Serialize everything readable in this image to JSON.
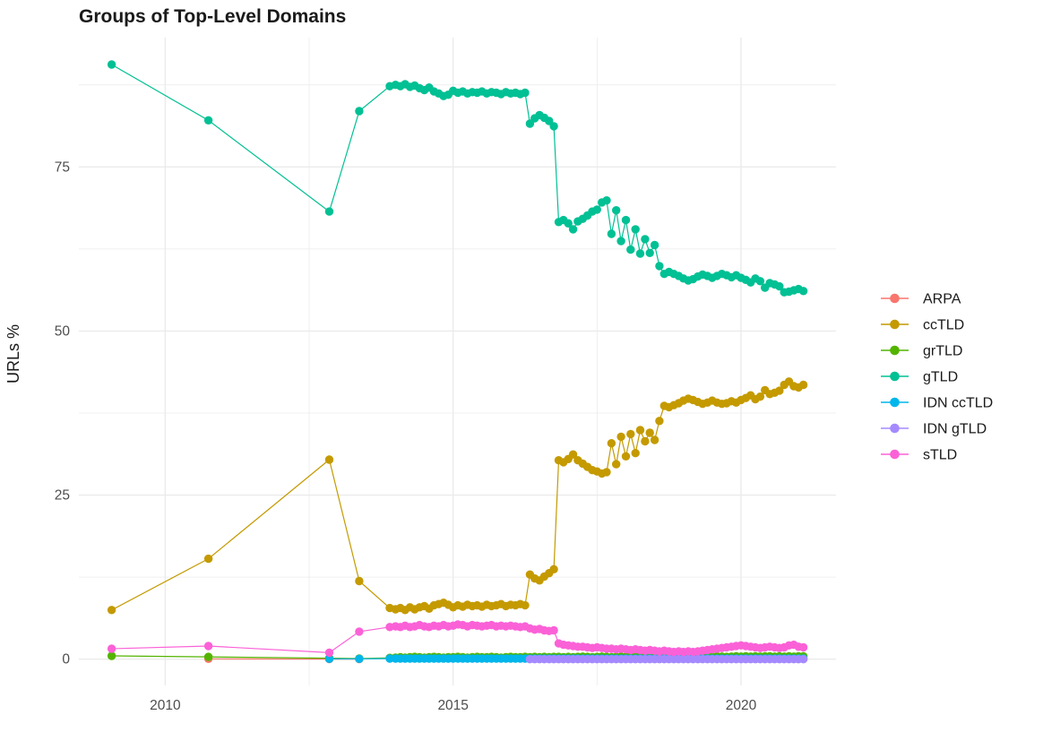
{
  "page": {
    "background": "#ffffff"
  },
  "chart_data": {
    "type": "line",
    "title": "Groups of Top-Level Domains",
    "xlabel": "",
    "ylabel": "URLs %",
    "grid": true,
    "legend_position": "right",
    "xlim": [
      2008.5,
      2021.65
    ],
    "ylim": [
      -4,
      94.7
    ],
    "x_ticks": [
      2010,
      2015,
      2020
    ],
    "x_tick_labels": [
      "2010",
      "2015",
      "2020"
    ],
    "x_minor_ticks": [
      2012.5,
      2017.5
    ],
    "y_ticks": [
      0,
      25,
      50,
      75
    ],
    "y_tick_labels": [
      "0",
      "25",
      "50",
      "75"
    ],
    "y_minor_ticks": [
      12.5,
      37.5,
      62.5,
      87.5
    ],
    "grid_color": "#ebebeb",
    "series": [
      {
        "name": "ARPA",
        "color": "#F8766D",
        "points": [
          [
            2010.75,
            0.05
          ],
          [
            2012.85,
            0.02
          ],
          [
            2013.37,
            0.02
          ]
        ]
      },
      {
        "name": "ccTLD",
        "color": "#C49A00",
        "points": [
          [
            2009.07,
            7.5
          ],
          [
            2010.75,
            15.3
          ],
          [
            2012.85,
            30.4
          ],
          [
            2013.37,
            11.9
          ],
          [
            2013.9,
            7.8
          ]
        ],
        "dense": {
          "start": 2014.0,
          "step": 0.083333,
          "values": [
            7.6,
            7.8,
            7.5,
            7.9,
            7.6,
            7.9,
            8.1,
            7.7,
            8.2,
            8.4,
            8.6,
            8.3,
            7.9,
            8.2,
            8.0,
            8.3,
            8.1,
            8.2,
            8.0,
            8.3,
            8.1,
            8.2,
            8.4,
            8.1,
            8.3,
            8.2,
            8.4,
            8.2,
            12.9,
            12.3,
            12.0,
            12.6,
            13.1,
            13.7,
            30.3,
            30.0,
            30.5,
            31.2,
            30.3,
            29.8,
            29.3,
            28.8,
            28.6,
            28.3,
            28.5,
            32.9,
            29.7,
            33.9,
            30.9,
            34.3,
            31.4,
            34.9,
            33.2,
            34.5,
            33.4,
            36.3,
            38.6,
            38.4,
            38.7,
            39.0,
            39.4,
            39.7,
            39.5,
            39.2,
            38.9,
            39.1,
            39.4,
            39.1,
            38.9,
            39.0,
            39.3,
            39.1,
            39.5,
            39.8,
            40.2,
            39.6,
            40.0,
            41.0,
            40.4,
            40.6,
            40.9,
            41.8,
            42.3,
            41.6,
            41.4,
            41.8
          ]
        }
      },
      {
        "name": "grTLD",
        "color": "#53B400",
        "points": [
          [
            2009.07,
            0.5
          ],
          [
            2010.75,
            0.35
          ],
          [
            2012.85,
            0.15
          ],
          [
            2013.37,
            0.1
          ],
          [
            2013.9,
            0.2
          ]
        ],
        "dense": {
          "start": 2014.0,
          "step": 0.083333,
          "values": [
            0.25,
            0.3,
            0.25,
            0.3,
            0.35,
            0.3,
            0.25,
            0.3,
            0.35,
            0.3,
            0.25,
            0.3,
            0.3,
            0.35,
            0.3,
            0.25,
            0.3,
            0.35,
            0.3,
            0.3,
            0.35,
            0.3,
            0.25,
            0.3,
            0.35,
            0.3,
            0.3,
            0.35,
            0.3,
            0.35,
            0.3,
            0.35,
            0.3,
            0.35,
            0.35,
            0.3,
            0.35,
            0.3,
            0.35,
            0.4,
            0.35,
            0.3,
            0.35,
            0.4,
            0.35,
            0.3,
            0.35,
            0.4,
            0.35,
            0.4,
            0.35,
            0.4,
            0.35,
            0.4,
            0.4,
            0.35,
            0.4,
            0.35,
            0.4,
            0.4,
            0.35,
            0.4,
            0.45,
            0.4,
            0.35,
            0.4,
            0.4,
            0.45,
            0.4,
            0.35,
            0.4,
            0.45,
            0.4,
            0.45,
            0.4,
            0.45,
            0.4,
            0.45,
            0.45,
            0.4,
            0.45,
            0.4,
            0.45,
            0.4,
            0.45,
            0.45
          ]
        }
      },
      {
        "name": "gTLD",
        "color": "#00C094",
        "points": [
          [
            2009.07,
            90.6
          ],
          [
            2010.75,
            82.1
          ],
          [
            2012.85,
            68.2
          ],
          [
            2013.37,
            83.5
          ],
          [
            2013.9,
            87.3
          ]
        ],
        "dense": {
          "start": 2014.0,
          "step": 0.083333,
          "values": [
            87.5,
            87.3,
            87.6,
            87.2,
            87.4,
            87.0,
            86.7,
            87.1,
            86.5,
            86.2,
            85.8,
            86.0,
            86.6,
            86.3,
            86.5,
            86.2,
            86.4,
            86.3,
            86.5,
            86.2,
            86.4,
            86.3,
            86.1,
            86.4,
            86.2,
            86.3,
            86.1,
            86.3,
            81.6,
            82.4,
            82.9,
            82.5,
            82.0,
            81.2,
            66.6,
            66.9,
            66.4,
            65.5,
            66.7,
            67.1,
            67.6,
            68.2,
            68.5,
            69.6,
            69.9,
            64.8,
            68.4,
            63.7,
            66.9,
            62.4,
            65.5,
            61.8,
            64.0,
            61.9,
            63.1,
            59.9,
            58.7,
            59.0,
            58.7,
            58.4,
            58.0,
            57.7,
            57.9,
            58.3,
            58.6,
            58.4,
            58.1,
            58.4,
            58.7,
            58.5,
            58.2,
            58.5,
            58.1,
            57.8,
            57.4,
            58.0,
            57.6,
            56.6,
            57.3,
            57.1,
            56.8,
            55.9,
            56.0,
            56.2,
            56.4,
            56.1
          ]
        }
      },
      {
        "name": "IDN ccTLD",
        "color": "#00B6EB",
        "points": [
          [
            2012.85,
            0.05
          ],
          [
            2013.37,
            0.05
          ],
          [
            2013.9,
            0.1
          ]
        ],
        "dense": {
          "start": 2014.0,
          "step": 0.083333,
          "count": 86,
          "value": 0.1
        }
      },
      {
        "name": "IDN gTLD",
        "color": "#A58AFF",
        "points": [],
        "dense": {
          "start": 2016.333,
          "step": 0.083333,
          "count": 58,
          "value": 0.0
        }
      },
      {
        "name": "sTLD",
        "color": "#FB61D7",
        "points": [
          [
            2009.07,
            1.6
          ],
          [
            2010.75,
            2.0
          ],
          [
            2012.85,
            1.0
          ],
          [
            2013.37,
            4.2
          ],
          [
            2013.9,
            4.9
          ]
        ],
        "dense": {
          "start": 2014.0,
          "step": 0.083333,
          "values": [
            5.0,
            4.9,
            5.1,
            4.9,
            5.0,
            5.2,
            5.0,
            4.9,
            5.1,
            5.0,
            5.2,
            5.0,
            5.1,
            5.3,
            5.2,
            5.0,
            5.2,
            5.1,
            5.0,
            5.1,
            5.2,
            5.0,
            5.1,
            5.0,
            5.1,
            5.0,
            4.9,
            5.0,
            4.7,
            4.5,
            4.6,
            4.4,
            4.3,
            4.4,
            2.4,
            2.2,
            2.1,
            2.0,
            1.9,
            1.9,
            1.8,
            1.7,
            1.8,
            1.7,
            1.6,
            1.6,
            1.5,
            1.6,
            1.5,
            1.4,
            1.5,
            1.4,
            1.3,
            1.4,
            1.3,
            1.2,
            1.3,
            1.2,
            1.1,
            1.2,
            1.1,
            1.2,
            1.1,
            1.2,
            1.3,
            1.4,
            1.5,
            1.6,
            1.7,
            1.8,
            1.9,
            2.0,
            2.1,
            2.0,
            1.9,
            1.8,
            1.7,
            1.8,
            1.9,
            1.8,
            1.7,
            1.8,
            2.1,
            2.2,
            1.9,
            1.8
          ]
        }
      }
    ]
  }
}
